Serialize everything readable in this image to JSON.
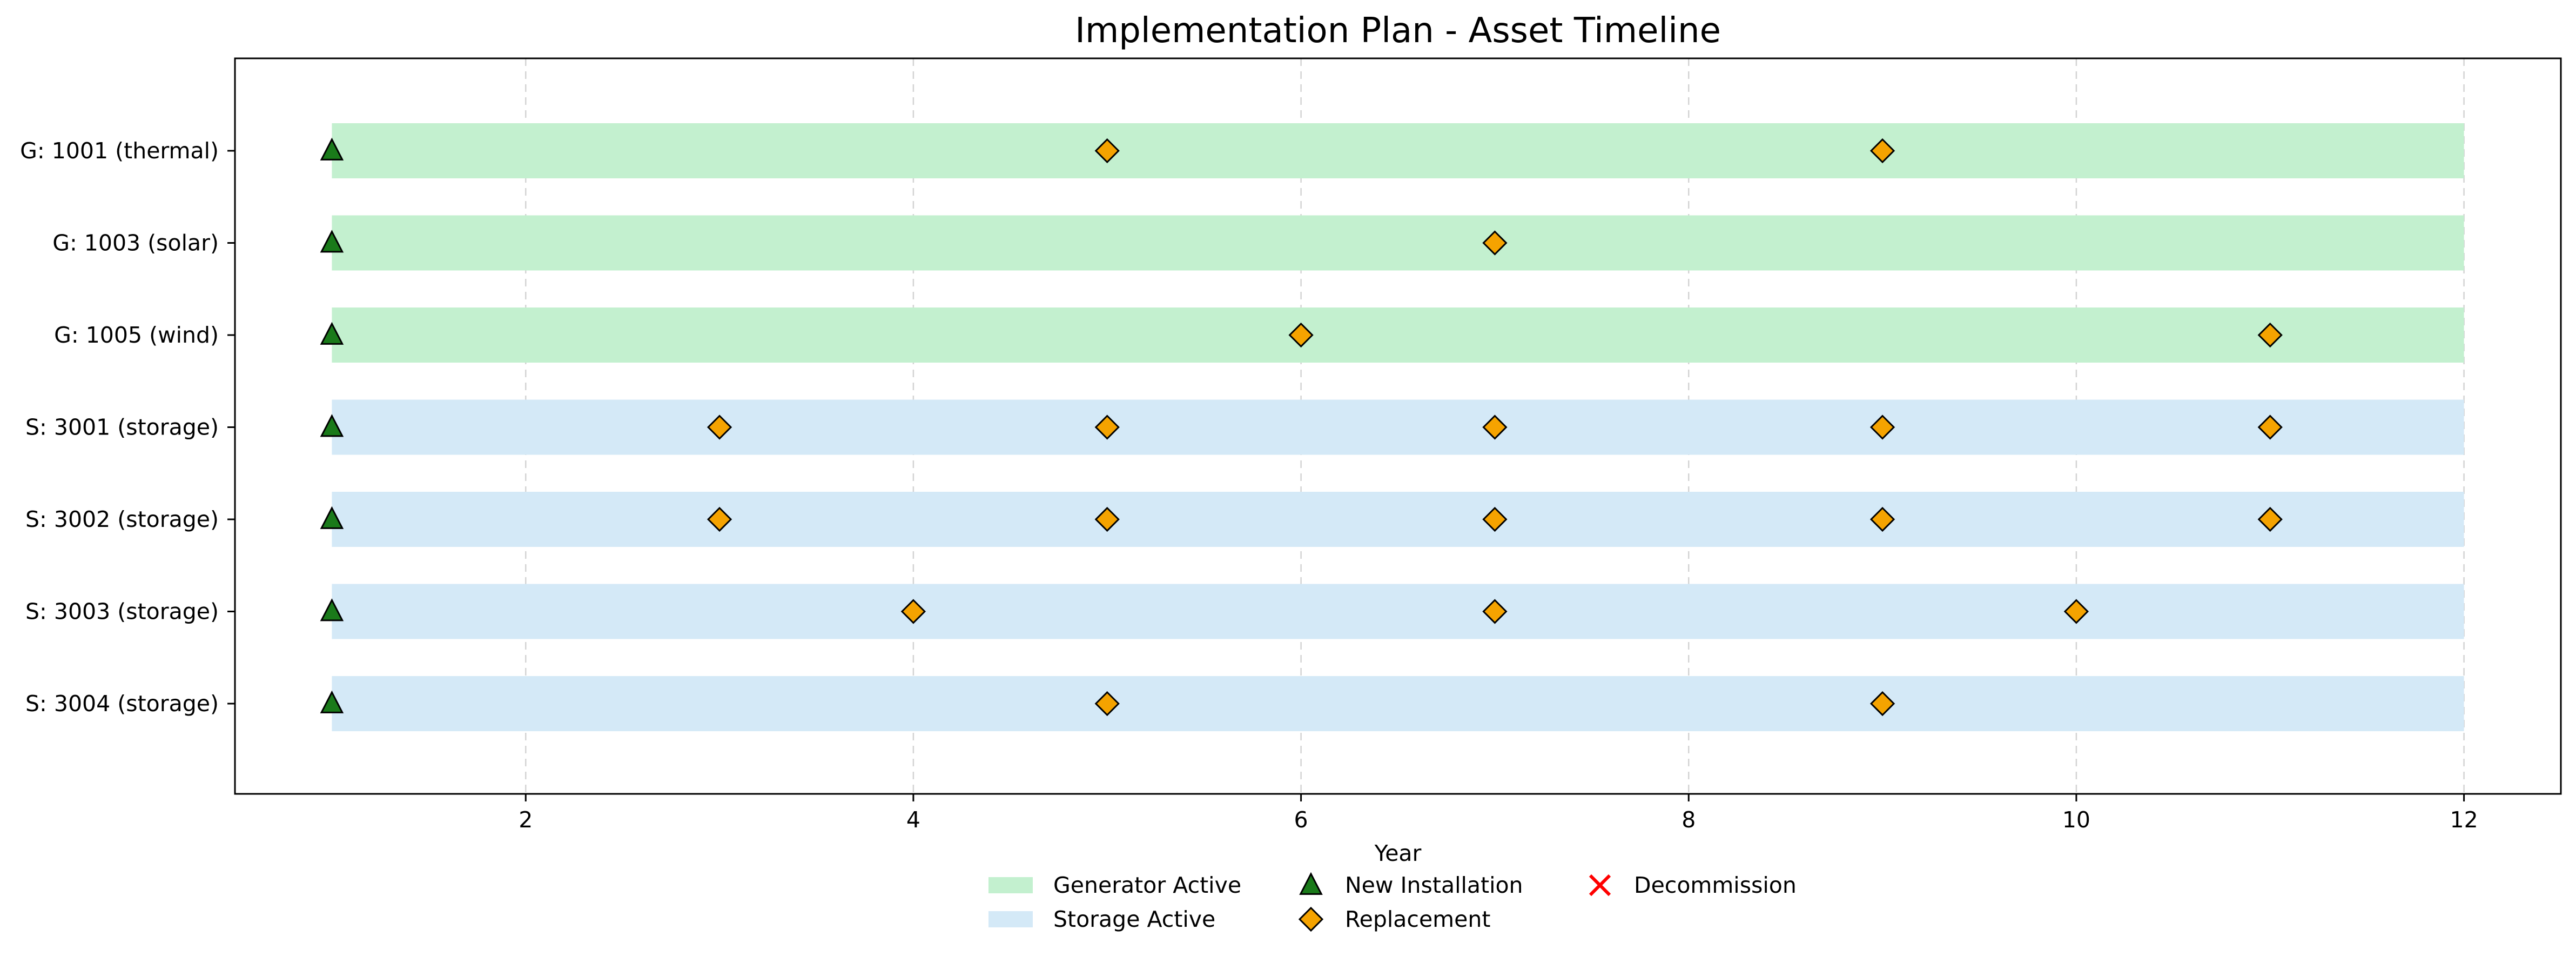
{
  "chart_data": {
    "type": "timeline",
    "title": "Implementation Plan - Asset Timeline",
    "xlabel": "Year",
    "ylabel": "",
    "xlim": [
      0.5,
      12.5
    ],
    "xticks": [
      2,
      4,
      6,
      8,
      10,
      12
    ],
    "grid": "x-dashed",
    "legend_position": "bottom-center",
    "colors": {
      "generator_active": "#c3f0cf",
      "storage_active": "#d4e9f7",
      "new_installation": "#1a7a1a",
      "replacement": "#f5a300",
      "decommission": "#ff0000"
    },
    "assets": [
      {
        "label": "G: 1001 (thermal)",
        "kind": "generator",
        "start": 1,
        "end": 12,
        "installation": 1,
        "replacements": [
          5,
          9
        ]
      },
      {
        "label": "G: 1003 (solar)",
        "kind": "generator",
        "start": 1,
        "end": 12,
        "installation": 1,
        "replacements": [
          7
        ]
      },
      {
        "label": "G: 1005 (wind)",
        "kind": "generator",
        "start": 1,
        "end": 12,
        "installation": 1,
        "replacements": [
          6,
          11
        ]
      },
      {
        "label": "S: 3001 (storage)",
        "kind": "storage",
        "start": 1,
        "end": 12,
        "installation": 1,
        "replacements": [
          3,
          5,
          7,
          9,
          11
        ]
      },
      {
        "label": "S: 3002 (storage)",
        "kind": "storage",
        "start": 1,
        "end": 12,
        "installation": 1,
        "replacements": [
          3,
          5,
          7,
          9,
          11
        ]
      },
      {
        "label": "S: 3003 (storage)",
        "kind": "storage",
        "start": 1,
        "end": 12,
        "installation": 1,
        "replacements": [
          4,
          7,
          10
        ]
      },
      {
        "label": "S: 3004 (storage)",
        "kind": "storage",
        "start": 1,
        "end": 12,
        "installation": 1,
        "replacements": [
          5,
          9
        ]
      }
    ],
    "legend": [
      {
        "label": "Generator Active",
        "marker": "band-generator"
      },
      {
        "label": "Storage Active",
        "marker": "band-storage"
      },
      {
        "label": "New Installation",
        "marker": "triangle"
      },
      {
        "label": "Replacement",
        "marker": "diamond"
      },
      {
        "label": "Decommission",
        "marker": "cross"
      }
    ]
  }
}
